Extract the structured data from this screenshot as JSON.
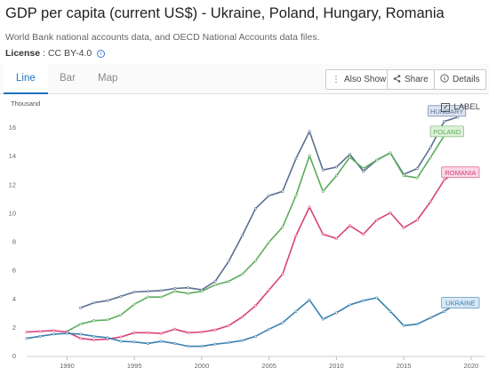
{
  "header": {
    "title": "GDP per capita (current US$) - Ukraine, Poland, Hungary, Romania",
    "source": "World Bank national accounts data, and OECD National Accounts data files.",
    "license_key": "License",
    "license_value": ": CC BY-4.0"
  },
  "tabs": [
    {
      "label": "Line",
      "active": true
    },
    {
      "label": "Bar",
      "active": false
    },
    {
      "label": "Map",
      "active": false
    }
  ],
  "toolbar": {
    "also_show": "Also Show",
    "share": "Share",
    "details": "Details"
  },
  "label_toggle": {
    "label": "LABEL",
    "checked": true
  },
  "chart_data": {
    "type": "line",
    "ylabel": "Thousand",
    "xlabel": "",
    "xlim": [
      1987,
      2021
    ],
    "ylim": [
      0,
      17
    ],
    "x_ticks": [
      "1990",
      "1995",
      "2000",
      "2005",
      "2010",
      "2015",
      "2020"
    ],
    "y_ticks": [
      "0",
      "2",
      "4",
      "6",
      "8",
      "10",
      "12",
      "14",
      "16"
    ],
    "grid": false,
    "series": [
      {
        "name": "HUNGARY",
        "color": "#5b6f91",
        "label_bg": "#dde3f0",
        "points": [
          [
            1991,
            3.35
          ],
          [
            1992,
            3.7
          ],
          [
            1993,
            3.85
          ],
          [
            1994,
            4.15
          ],
          [
            1995,
            4.45
          ],
          [
            1996,
            4.5
          ],
          [
            1997,
            4.55
          ],
          [
            1998,
            4.7
          ],
          [
            1999,
            4.75
          ],
          [
            2000,
            4.6
          ],
          [
            2001,
            5.2
          ],
          [
            2002,
            6.6
          ],
          [
            2003,
            8.4
          ],
          [
            2004,
            10.3
          ],
          [
            2005,
            11.2
          ],
          [
            2006,
            11.5
          ],
          [
            2007,
            13.8
          ],
          [
            2008,
            15.7
          ],
          [
            2009,
            13.0
          ],
          [
            2010,
            13.2
          ],
          [
            2011,
            14.1
          ],
          [
            2012,
            12.9
          ],
          [
            2013,
            13.7
          ],
          [
            2014,
            14.2
          ],
          [
            2015,
            12.7
          ],
          [
            2016,
            13.1
          ],
          [
            2017,
            14.6
          ],
          [
            2018,
            16.4
          ],
          [
            2019,
            16.7
          ]
        ]
      },
      {
        "name": "POLAND",
        "color": "#5cac5c",
        "label_bg": "#dcf0d8",
        "points": [
          [
            1990,
            1.7
          ],
          [
            1991,
            2.2
          ],
          [
            1992,
            2.45
          ],
          [
            1993,
            2.5
          ],
          [
            1994,
            2.85
          ],
          [
            1995,
            3.6
          ],
          [
            1996,
            4.1
          ],
          [
            1997,
            4.1
          ],
          [
            1998,
            4.5
          ],
          [
            1999,
            4.35
          ],
          [
            2000,
            4.5
          ],
          [
            2001,
            4.95
          ],
          [
            2002,
            5.2
          ],
          [
            2003,
            5.7
          ],
          [
            2004,
            6.65
          ],
          [
            2005,
            7.95
          ],
          [
            2006,
            9.0
          ],
          [
            2007,
            11.2
          ],
          [
            2008,
            14.0
          ],
          [
            2009,
            11.5
          ],
          [
            2010,
            12.6
          ],
          [
            2011,
            13.9
          ],
          [
            2012,
            13.1
          ],
          [
            2013,
            13.7
          ],
          [
            2014,
            14.2
          ],
          [
            2015,
            12.6
          ],
          [
            2016,
            12.45
          ],
          [
            2017,
            13.9
          ],
          [
            2018,
            15.4
          ],
          [
            2019,
            15.7
          ]
        ]
      },
      {
        "name": "ROMANIA",
        "color": "#d9417a",
        "label_bg": "#f8d8e4",
        "points": [
          [
            1987,
            1.65
          ],
          [
            1988,
            1.7
          ],
          [
            1989,
            1.75
          ],
          [
            1990,
            1.65
          ],
          [
            1991,
            1.2
          ],
          [
            1992,
            1.1
          ],
          [
            1993,
            1.15
          ],
          [
            1994,
            1.3
          ],
          [
            1995,
            1.6
          ],
          [
            1996,
            1.6
          ],
          [
            1997,
            1.55
          ],
          [
            1998,
            1.85
          ],
          [
            1999,
            1.6
          ],
          [
            2000,
            1.65
          ],
          [
            2001,
            1.8
          ],
          [
            2002,
            2.1
          ],
          [
            2003,
            2.7
          ],
          [
            2004,
            3.5
          ],
          [
            2005,
            4.6
          ],
          [
            2006,
            5.7
          ],
          [
            2007,
            8.4
          ],
          [
            2008,
            10.4
          ],
          [
            2009,
            8.5
          ],
          [
            2010,
            8.2
          ],
          [
            2011,
            9.1
          ],
          [
            2012,
            8.5
          ],
          [
            2013,
            9.5
          ],
          [
            2014,
            10.0
          ],
          [
            2015,
            8.95
          ],
          [
            2016,
            9.5
          ],
          [
            2017,
            10.8
          ],
          [
            2018,
            12.3
          ],
          [
            2019,
            12.9
          ],
          [
            2020,
            12.9
          ]
        ]
      },
      {
        "name": "UKRAINE",
        "color": "#3a7fae",
        "label_bg": "#d8e8f5",
        "points": [
          [
            1987,
            1.2
          ],
          [
            1988,
            1.35
          ],
          [
            1989,
            1.5
          ],
          [
            1990,
            1.55
          ],
          [
            1991,
            1.5
          ],
          [
            1992,
            1.35
          ],
          [
            1993,
            1.25
          ],
          [
            1994,
            1.0
          ],
          [
            1995,
            0.95
          ],
          [
            1996,
            0.85
          ],
          [
            1997,
            1.0
          ],
          [
            1998,
            0.85
          ],
          [
            1999,
            0.65
          ],
          [
            2000,
            0.65
          ],
          [
            2001,
            0.8
          ],
          [
            2002,
            0.9
          ],
          [
            2003,
            1.05
          ],
          [
            2004,
            1.35
          ],
          [
            2005,
            1.85
          ],
          [
            2006,
            2.3
          ],
          [
            2007,
            3.1
          ],
          [
            2008,
            3.9
          ],
          [
            2009,
            2.55
          ],
          [
            2010,
            3.0
          ],
          [
            2011,
            3.55
          ],
          [
            2012,
            3.85
          ],
          [
            2013,
            4.05
          ],
          [
            2014,
            3.1
          ],
          [
            2015,
            2.1
          ],
          [
            2016,
            2.2
          ],
          [
            2017,
            2.65
          ],
          [
            2018,
            3.1
          ],
          [
            2019,
            3.65
          ],
          [
            2020,
            3.7
          ]
        ]
      }
    ]
  }
}
